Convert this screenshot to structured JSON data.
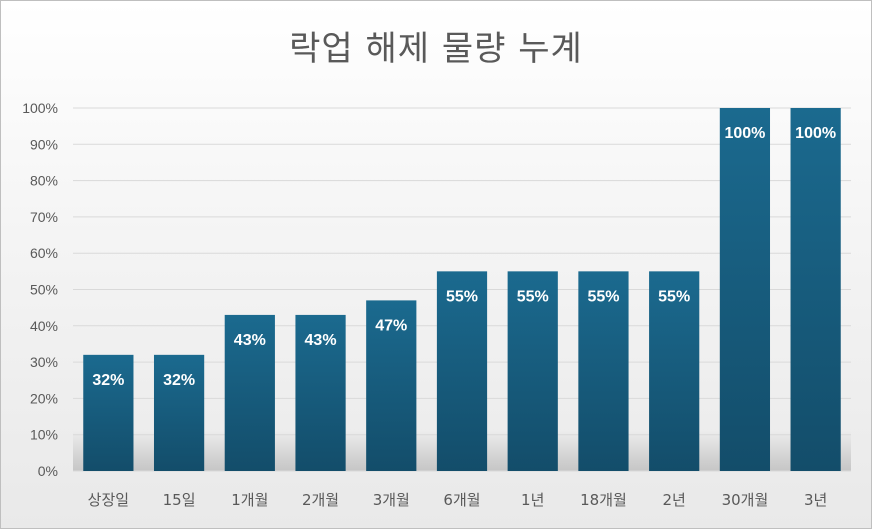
{
  "chart_data": {
    "type": "bar",
    "title": "락업 해제 물량 누계",
    "xlabel": "",
    "ylabel": "",
    "categories": [
      "상장일",
      "15일",
      "1개월",
      "2개월",
      "3개월",
      "6개월",
      "1년",
      "18개월",
      "2년",
      "30개월",
      "3년"
    ],
    "values": [
      32,
      32,
      43,
      43,
      47,
      55,
      55,
      55,
      55,
      100,
      100
    ],
    "data_labels": [
      "32%",
      "32%",
      "43%",
      "43%",
      "47%",
      "55%",
      "55%",
      "55%",
      "55%",
      "100%",
      "100%"
    ],
    "ylim": [
      0,
      100
    ],
    "yticks": [
      0,
      10,
      20,
      30,
      40,
      50,
      60,
      70,
      80,
      90,
      100
    ],
    "ytick_labels": [
      "0%",
      "10%",
      "20%",
      "30%",
      "40%",
      "50%",
      "60%",
      "70%",
      "80%",
      "90%",
      "100%"
    ],
    "grid": true,
    "legend": "none",
    "colors": {
      "bar_top": "#1b6a8f",
      "bar_bottom": "#134d6a",
      "grid": "#d9d9d9",
      "text": "#595959",
      "data_label": "#ffffff"
    }
  }
}
